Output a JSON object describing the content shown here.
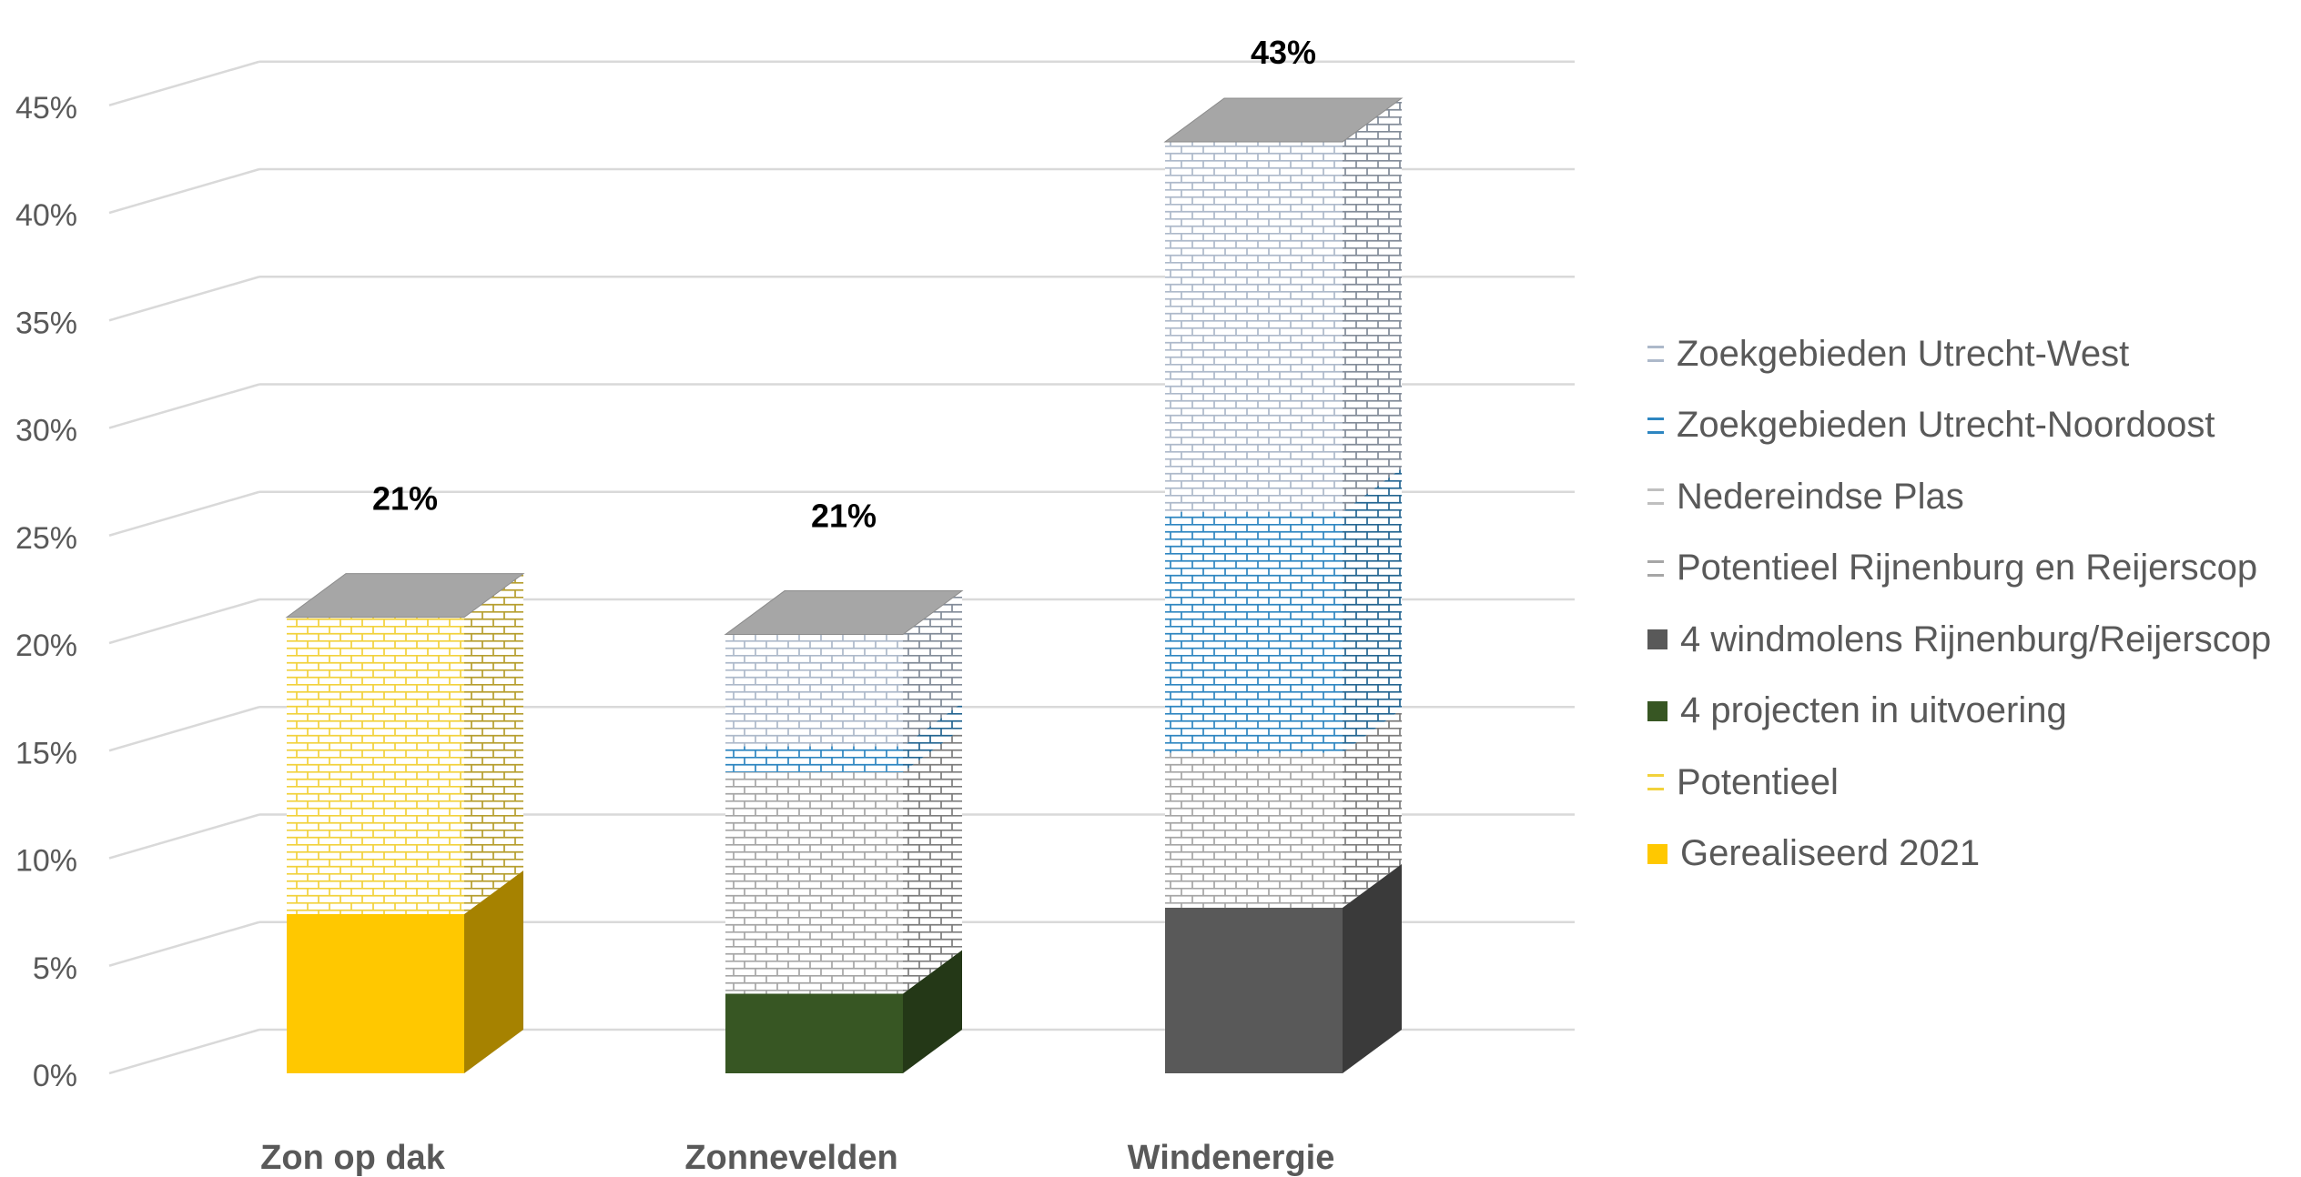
{
  "chart_data": {
    "type": "bar",
    "stacked": true,
    "three_d": true,
    "categories": [
      "Zon op dak",
      "Zonnevelden",
      "Windenergie"
    ],
    "totals_labels": [
      "21%",
      "21%",
      "43%"
    ],
    "ylim": [
      0,
      45
    ],
    "yticks": [
      0,
      5,
      10,
      15,
      20,
      25,
      30,
      35,
      40,
      45
    ],
    "ytick_labels": [
      "0%",
      "5%",
      "10%",
      "15%",
      "20%",
      "25%",
      "30%",
      "35%",
      "40%",
      "45%"
    ],
    "grid": true,
    "legend_position": "right",
    "series": [
      {
        "name": "Gerealiseerd 2021",
        "color": "#FFC800",
        "pattern": "solid",
        "values": [
          7.4,
          0,
          0
        ]
      },
      {
        "name": "Potentieel",
        "color": "#F2D23C",
        "pattern": "brick",
        "values": [
          13.8,
          0,
          0
        ]
      },
      {
        "name": "4 projecten in uitvoering",
        "color": "#375623",
        "pattern": "solid",
        "values": [
          0,
          3.7,
          0
        ]
      },
      {
        "name": "4 windmolens Rijnenburg/Reijerscop",
        "color": "#595959",
        "pattern": "solid",
        "values": [
          0,
          0,
          7.7
        ]
      },
      {
        "name": "Potentieel Rijnenburg en Reijerscop",
        "color": "#A6A6A6",
        "pattern": "brick",
        "values": [
          0,
          10.3,
          7.2
        ]
      },
      {
        "name": "Nedereindse Plas",
        "color": "#BFBFBF",
        "pattern": "brick",
        "values": [
          0,
          0,
          0
        ]
      },
      {
        "name": "Zoekgebieden Utrecht-Noordoost",
        "color": "#2E86C1",
        "pattern": "brick",
        "values": [
          0,
          1.2,
          11.2
        ]
      },
      {
        "name": "Zoekgebieden Utrecht-West",
        "color": "#ADB9CA",
        "pattern": "brick",
        "values": [
          0,
          5.2,
          17.2
        ]
      }
    ]
  }
}
